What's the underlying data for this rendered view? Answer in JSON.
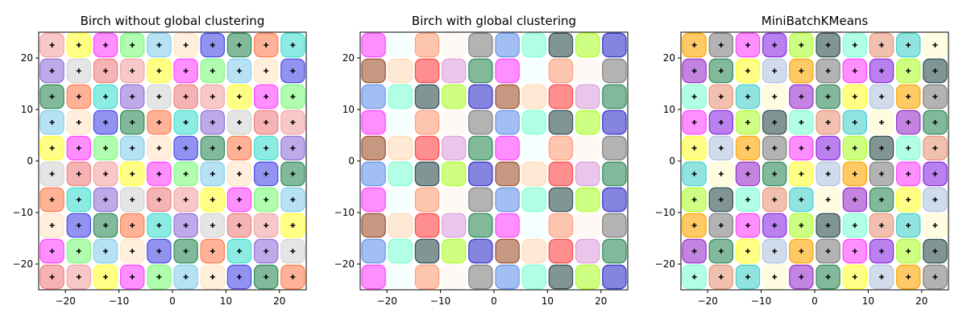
{
  "chart_data": [
    {
      "type": "scatter",
      "title": "Birch without global clustering",
      "xlim": [
        -25,
        25
      ],
      "ylim": [
        -25,
        25
      ],
      "xticks": [
        {
          "value": -20,
          "label": "−20"
        },
        {
          "value": -10,
          "label": "−10"
        },
        0,
        10,
        20
      ],
      "yticks": [
        {
          "value": -20,
          "label": "−20"
        },
        {
          "value": -10,
          "label": "−10"
        },
        0,
        10,
        20
      ],
      "cluster_x": [
        -22.5,
        -17.5,
        -12.5,
        -7.5,
        -2.5,
        2.5,
        7.5,
        12.5,
        17.5,
        22.5
      ],
      "cluster_y": [
        22.5,
        17.5,
        12.5,
        7.5,
        2.5,
        -2.5,
        -7.5,
        -12.5,
        -17.5,
        -22.5
      ],
      "palette": [
        "#f4a4a4",
        "#ffff33",
        "#ff44ff",
        "#7cfc7c",
        "#87ceeb",
        "#ffe4c4",
        "#4a4ae8",
        "#2e8b57",
        "#ff7f50",
        "#40e0d0",
        "#9370db",
        "#d3d3d3",
        "#f08080"
      ],
      "centers": true,
      "center_color": "#000000"
    },
    {
      "type": "scatter",
      "title": "Birch with global clustering",
      "xlim": [
        -25,
        25
      ],
      "ylim": [
        -25,
        25
      ],
      "xticks": [
        {
          "value": -20,
          "label": "−20"
        },
        {
          "value": -10,
          "label": "−10"
        },
        0,
        10,
        20
      ],
      "yticks": [
        {
          "value": -20,
          "label": "−20"
        },
        {
          "value": -10,
          "label": "−10"
        },
        0,
        10,
        20
      ],
      "cluster_x": [
        -22.5,
        -17.5,
        -12.5,
        -7.5,
        -2.5,
        2.5,
        7.5,
        12.5,
        17.5,
        22.5
      ],
      "cluster_y": [
        22.5,
        17.5,
        12.5,
        7.5,
        2.5,
        -2.5,
        -7.5,
        -12.5,
        -17.5,
        -22.5
      ],
      "palette": [
        "#ff44ff",
        "#f0ffff",
        "#ffa07a",
        "#fff5ee",
        "#808080",
        "#6495ed",
        "#7fffd4",
        "#2f4f4f",
        "#adff2f",
        "#3333cc",
        "#a0522d",
        "#ffdab9",
        "#ff4444",
        "#dda0dd",
        "#2e8b57"
      ],
      "centers": false,
      "center_color": "#000000"
    },
    {
      "type": "scatter",
      "title": "MiniBatchKMeans",
      "xlim": [
        -25,
        25
      ],
      "ylim": [
        -25,
        25
      ],
      "xticks": [
        {
          "value": -20,
          "label": "−20"
        },
        {
          "value": -10,
          "label": "−10"
        },
        0,
        10,
        20
      ],
      "yticks": [
        {
          "value": -20,
          "label": "−20"
        },
        {
          "value": -10,
          "label": "−10"
        },
        0,
        10,
        20
      ],
      "cluster_x": [
        -22.5,
        -17.5,
        -12.5,
        -7.5,
        -2.5,
        2.5,
        7.5,
        12.5,
        17.5,
        22.5
      ],
      "cluster_y": [
        22.5,
        17.5,
        12.5,
        7.5,
        2.5,
        -2.5,
        -7.5,
        -12.5,
        -17.5,
        -22.5
      ],
      "palette": [
        "#ffa500",
        "#808080",
        "#ff44ff",
        "#8a2be2",
        "#adff2f",
        "#2f4f4f",
        "#7fffd4",
        "#e9967a",
        "#48d1cc",
        "#fffacd",
        "#9932cc",
        "#2e8b57",
        "#ffff33",
        "#b0c4de"
      ],
      "centers": true,
      "center_color": "#000000"
    }
  ]
}
